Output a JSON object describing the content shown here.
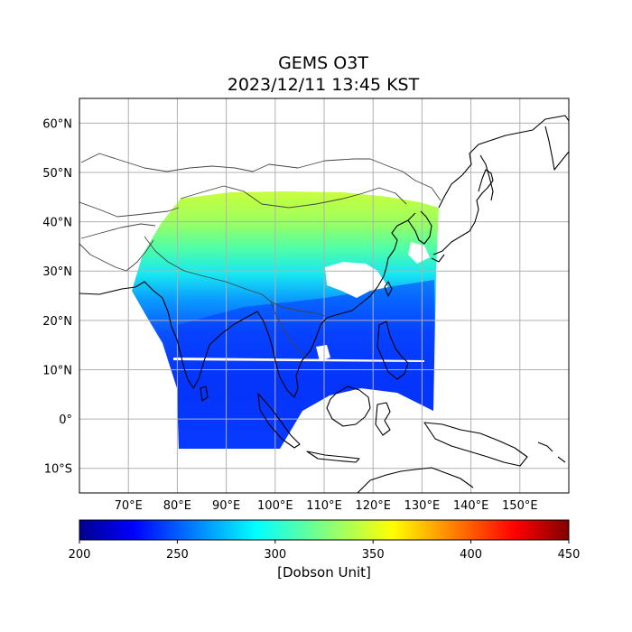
{
  "title": {
    "line1": "GEMS O3T",
    "line2": "2023/12/11 13:45 KST"
  },
  "map": {
    "projection": "PlateCarree",
    "lon_range": [
      60,
      160
    ],
    "lat_range": [
      -15,
      65
    ],
    "lon_ticks": [
      70,
      80,
      90,
      100,
      110,
      120,
      130,
      140,
      150
    ],
    "lon_tick_labels": [
      "70°E",
      "80°E",
      "90°E",
      "100°E",
      "110°E",
      "120°E",
      "130°E",
      "140°E",
      "150°E"
    ],
    "lat_ticks": [
      60,
      50,
      40,
      30,
      20,
      10,
      0,
      -10
    ],
    "lat_tick_labels": [
      "60°N",
      "50°N",
      "40°N",
      "30°N",
      "20°N",
      "10°N",
      "0°",
      "10°S"
    ],
    "gridlines": true,
    "coastlines": true,
    "country_borders": true,
    "data_field": "Total column ozone (GEMS O3T)",
    "field_summary": [
      {
        "region": "northern band 40–46°N",
        "approx_value": 345
      },
      {
        "region": "central band 30–38°N",
        "approx_value": 315
      },
      {
        "region": "tropics 0–25°N",
        "approx_value": 255
      },
      {
        "region": "south of equator",
        "approx_value": 245
      }
    ]
  },
  "colorbar": {
    "colormap": "jet",
    "vmin": 200,
    "vmax": 450,
    "ticks": [
      "200",
      "250",
      "300",
      "350",
      "400",
      "450"
    ],
    "label": "[Dobson Unit]"
  }
}
